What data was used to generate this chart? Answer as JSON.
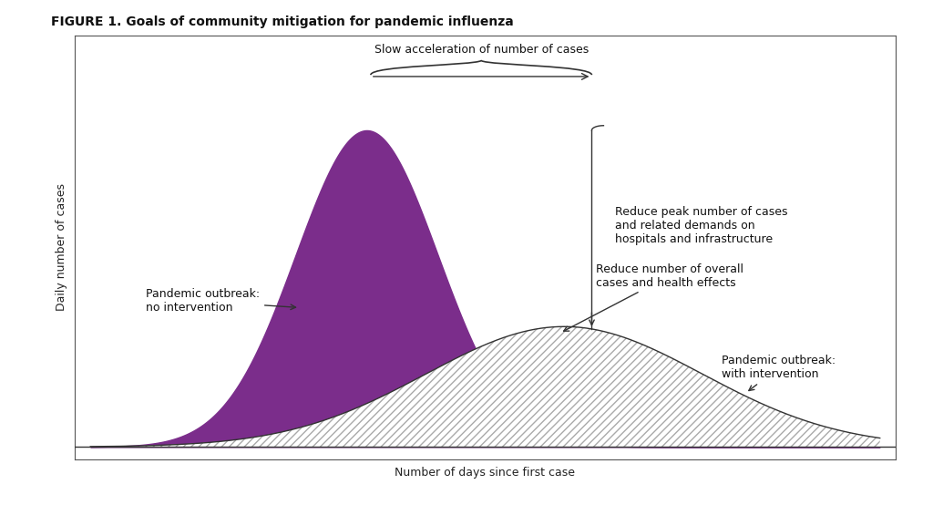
{
  "title": "FIGURE 1. Goals of community mitigation for pandemic influenza",
  "xlabel": "Number of days since first case",
  "ylabel": "Daily number of cases",
  "background_color": "#ffffff",
  "plot_bg_color": "#ffffff",
  "no_intervention_color": "#7B2D8B",
  "with_intervention_edge_color": "#333333",
  "annotations": {
    "slow_acceleration": "Slow acceleration of number of cases",
    "reduce_peak": "Reduce peak number of cases\nand related demands on\nhospitals and infrastructure",
    "reduce_overall": "Reduce number of overall\ncases and health effects",
    "no_intervention_label": "Pandemic outbreak:\nno intervention",
    "with_intervention_label": "Pandemic outbreak:\nwith intervention"
  },
  "curve1": {
    "mean": 0.35,
    "std": 0.09,
    "scale": 1.0
  },
  "curve2": {
    "mean": 0.6,
    "std": 0.175,
    "scale": 0.38
  },
  "ann_fontsize": 9,
  "title_fontsize": 10
}
